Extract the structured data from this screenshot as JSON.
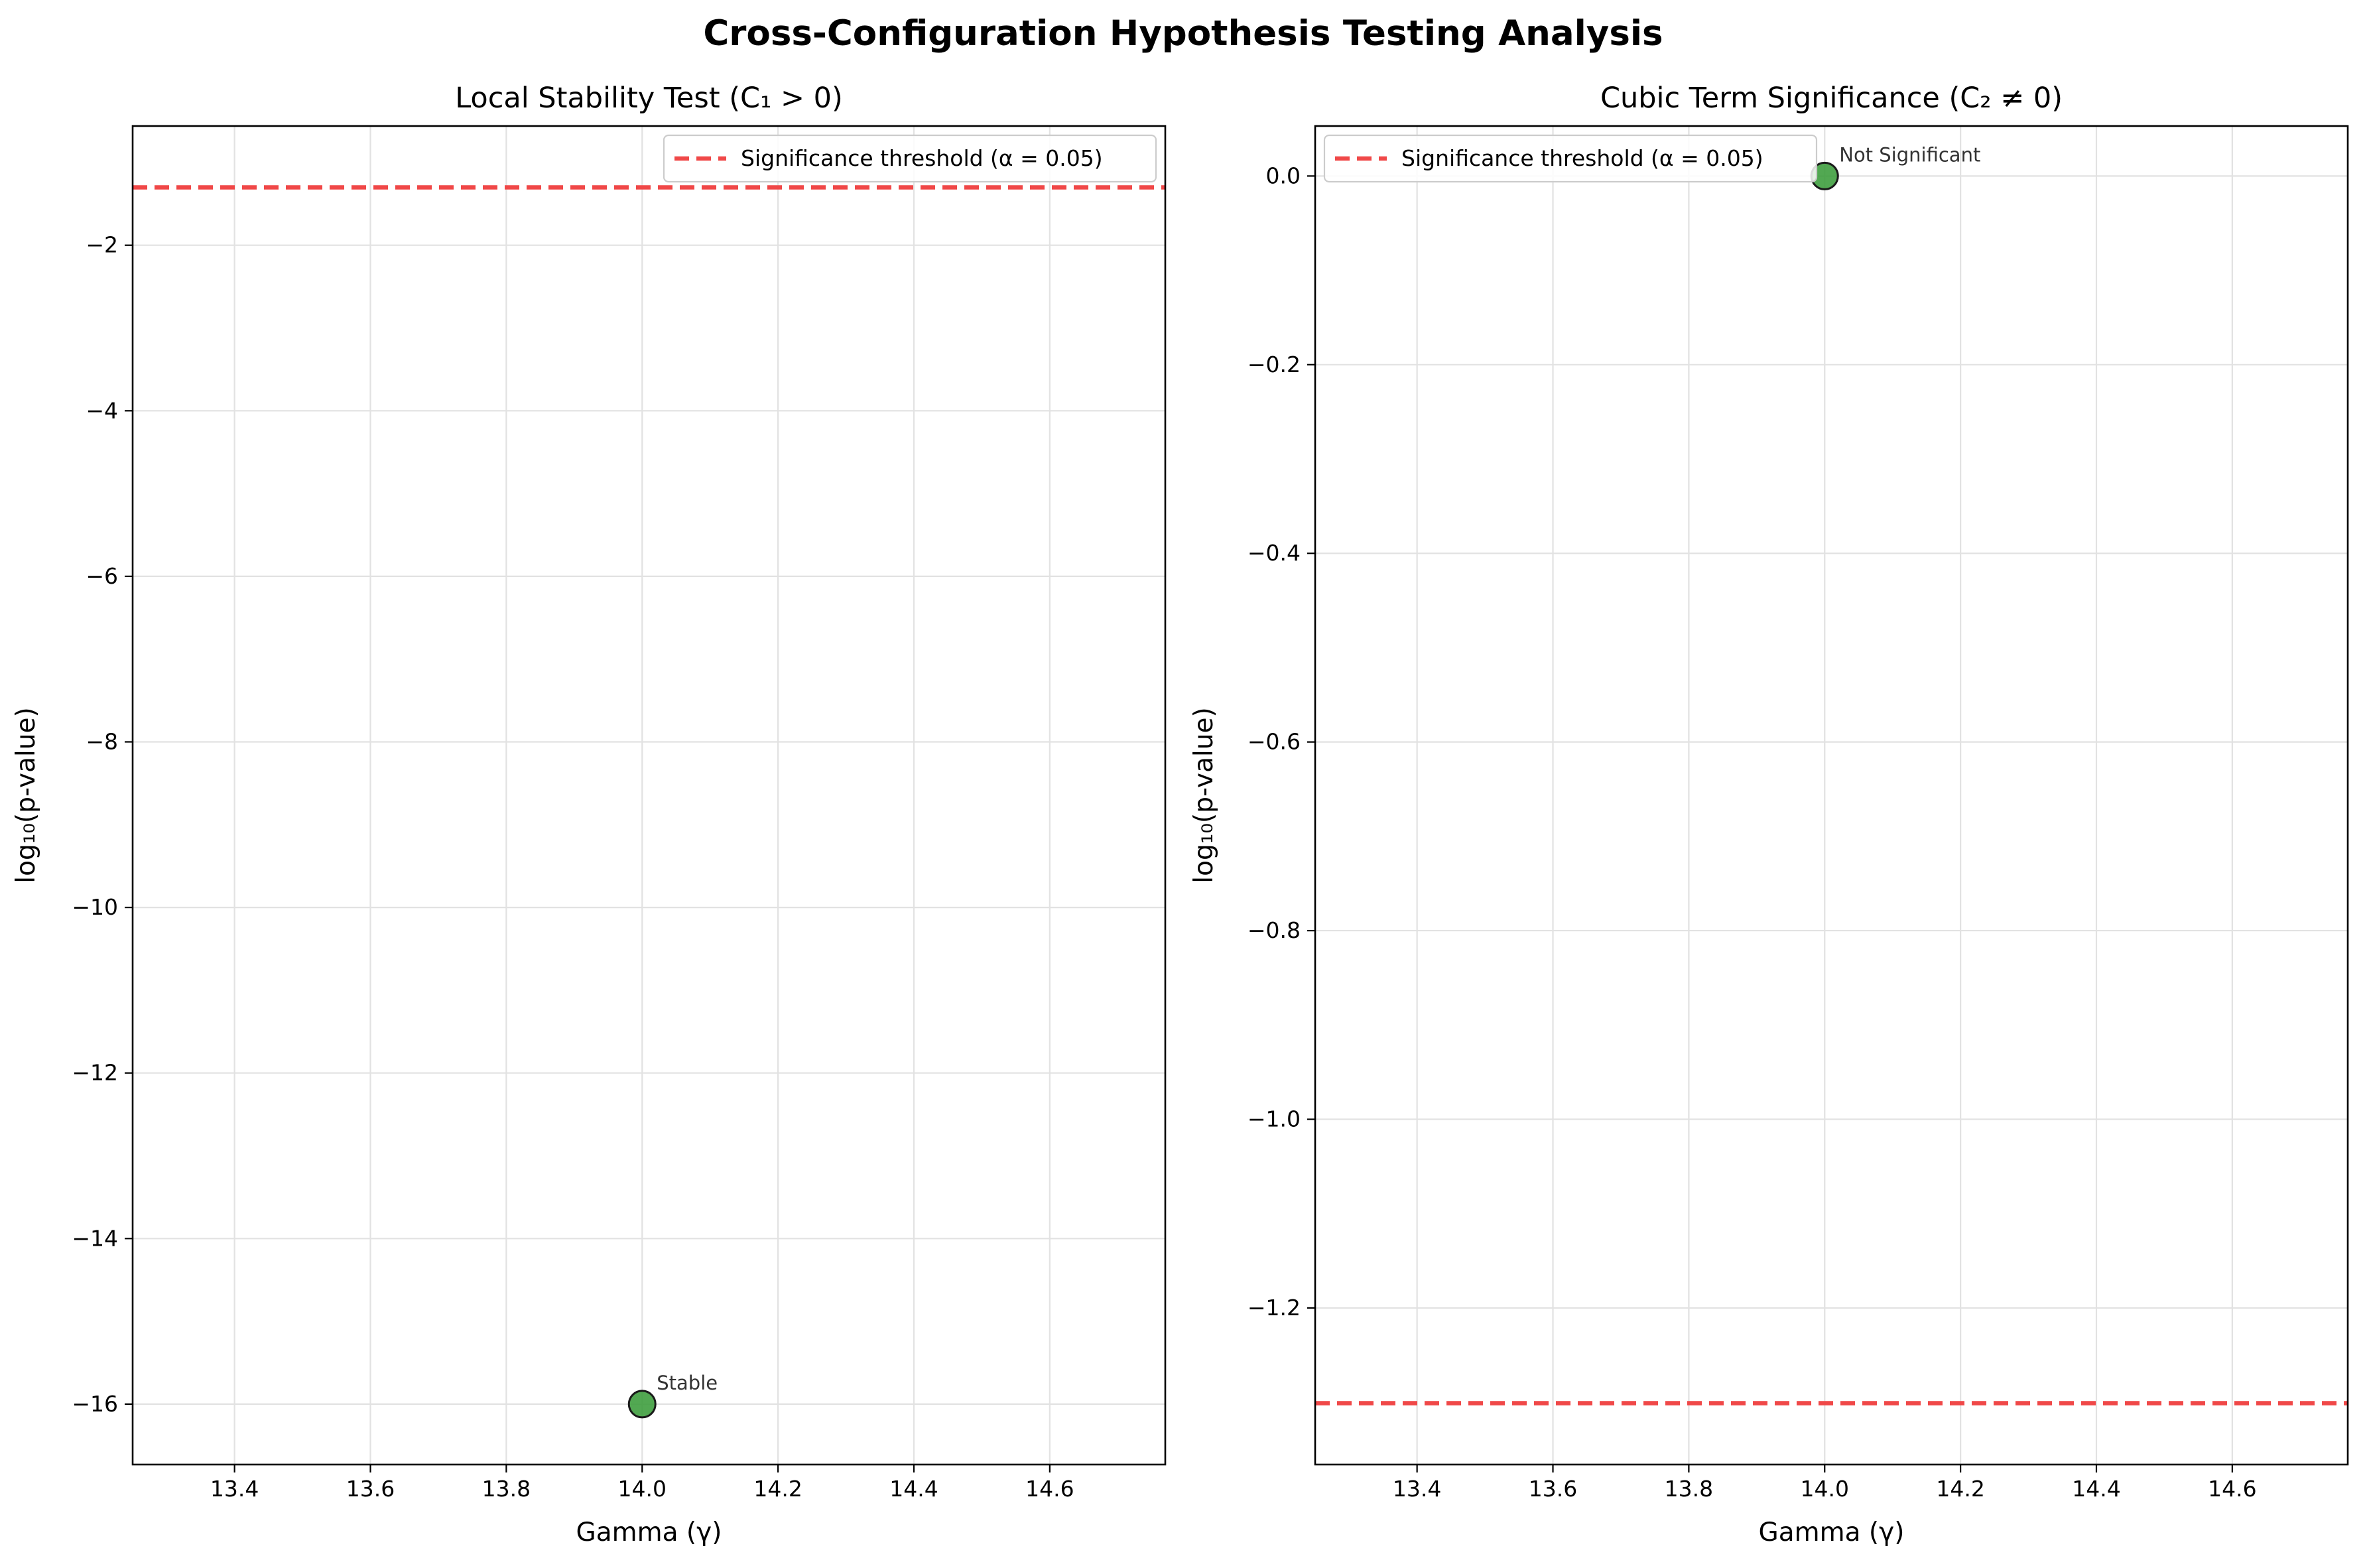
{
  "figure": {
    "suptitle": "Cross-Configuration Hypothesis Testing Analysis"
  },
  "colors": {
    "threshold": "#f04848",
    "marker_fill": "#3f9f3f",
    "marker_edge": "#1a1a1a",
    "grid": "#e2e2e2",
    "axis": "#000000",
    "annotation": "#333333"
  },
  "chart_data": [
    {
      "type": "scatter",
      "title": "Local Stability Test (C₁ > 0)",
      "xlabel": "Gamma (γ)",
      "ylabel": "log₁₀(p-value)",
      "xlim": [
        13.25,
        14.77
      ],
      "ylim": [
        -16.73,
        -0.56
      ],
      "xticks": [
        13.4,
        13.6,
        13.8,
        14.0,
        14.2,
        14.4,
        14.6
      ],
      "xtick_labels": [
        "13.4",
        "13.6",
        "13.8",
        "14.0",
        "14.2",
        "14.4",
        "14.6"
      ],
      "yticks": [
        -2,
        -4,
        -6,
        -8,
        -10,
        -12,
        -14,
        -16
      ],
      "ytick_labels": [
        "−2",
        "−4",
        "−6",
        "−8",
        "−10",
        "−12",
        "−14",
        "−16"
      ],
      "grid": true,
      "legend_position": "upper right",
      "threshold": {
        "value": -1.301,
        "label": "Significance threshold (α = 0.05)"
      },
      "points": [
        {
          "x": 14.0,
          "y": -16.0,
          "label": "Stable"
        }
      ]
    },
    {
      "type": "scatter",
      "title": "Cubic Term Significance (C₂ ≠ 0)",
      "xlabel": "Gamma (γ)",
      "ylabel": "log₁₀(p-value)",
      "xlim": [
        13.25,
        14.77
      ],
      "ylim": [
        -1.366,
        0.053
      ],
      "xticks": [
        13.4,
        13.6,
        13.8,
        14.0,
        14.2,
        14.4,
        14.6
      ],
      "xtick_labels": [
        "13.4",
        "13.6",
        "13.8",
        "14.0",
        "14.2",
        "14.4",
        "14.6"
      ],
      "yticks": [
        0.0,
        -0.2,
        -0.4,
        -0.6,
        -0.8,
        -1.0,
        -1.2
      ],
      "ytick_labels": [
        "0.0",
        "−0.2",
        "−0.4",
        "−0.6",
        "−0.8",
        "−1.0",
        "−1.2"
      ],
      "grid": true,
      "legend_position": "upper left",
      "threshold": {
        "value": -1.301,
        "label": "Significance threshold (α = 0.05)"
      },
      "points": [
        {
          "x": 14.0,
          "y": 0.0,
          "label": "Not Significant"
        }
      ]
    }
  ]
}
